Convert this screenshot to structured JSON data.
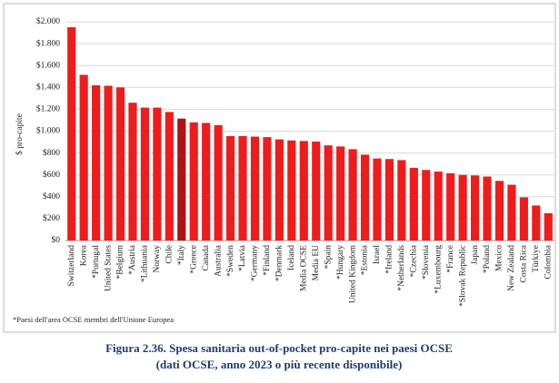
{
  "chart_data": {
    "type": "bar",
    "y_axis_label": "$ pro-capite",
    "categories": [
      "Switzerland",
      "Korea",
      "*Portugal",
      "United States",
      "*Belgium",
      "*Austria",
      "*Lithuania",
      "Norway",
      "Chile",
      "*Italy",
      "*Greece",
      "Canada",
      "Australia",
      "*Sweden",
      "*Latvia",
      "*Germany",
      "*Finland",
      "*Denmark",
      "Iceland",
      "Media OCSE",
      "Media EU",
      "*Spain",
      "*Hungary",
      "United Kingdom",
      "*Estonia",
      "Israel",
      "*Ireland",
      "*Netherlands",
      "*Czechia",
      "*Slovenia",
      "*Luxembourg",
      "*France",
      "*Slovak Republic",
      "Japan",
      "*Poland",
      "Mexico",
      "New Zealand",
      "Costa Rica",
      "Türkiye",
      "Colombia"
    ],
    "values": [
      1950,
      1515,
      1420,
      1415,
      1400,
      1260,
      1215,
      1215,
      1175,
      1115,
      1080,
      1075,
      1055,
      955,
      955,
      950,
      945,
      925,
      915,
      910,
      905,
      870,
      860,
      835,
      785,
      750,
      745,
      735,
      665,
      645,
      630,
      615,
      600,
      595,
      585,
      545,
      510,
      395,
      320,
      250
    ],
    "colors": [
      "#ee1c1c",
      "#ee1c1c",
      "#ee1c1c",
      "#ee1c1c",
      "#ee1c1c",
      "#ee1c1c",
      "#ee1c1c",
      "#ee1c1c",
      "#ee1c1c",
      "#b01116",
      "#ee1c1c",
      "#ee1c1c",
      "#ee1c1c",
      "#ee1c1c",
      "#ee1c1c",
      "#ee1c1c",
      "#ee1c1c",
      "#ee1c1c",
      "#ee1c1c",
      "#ee1c1c",
      "#ee1c1c",
      "#ee1c1c",
      "#ee1c1c",
      "#ee1c1c",
      "#ee1c1c",
      "#ee1c1c",
      "#ee1c1c",
      "#ee1c1c",
      "#ee1c1c",
      "#ee1c1c",
      "#ee1c1c",
      "#ee1c1c",
      "#ee1c1c",
      "#ee1c1c",
      "#ee1c1c",
      "#ee1c1c",
      "#ee1c1c",
      "#ee1c1c",
      "#ee1c1c",
      "#ee1c1c"
    ],
    "ylim": [
      0,
      2000
    ],
    "yticks": [
      {
        "value": 0,
        "label": "$0"
      },
      {
        "value": 200,
        "label": "$200"
      },
      {
        "value": 400,
        "label": "$400"
      },
      {
        "value": 600,
        "label": "$600"
      },
      {
        "value": 800,
        "label": "$800"
      },
      {
        "value": 1000,
        "label": "$1.000"
      },
      {
        "value": 1200,
        "label": "$1.200"
      },
      {
        "value": 1400,
        "label": "$1.400"
      },
      {
        "value": 1600,
        "label": "$1.600"
      },
      {
        "value": 1800,
        "label": "$1.800"
      },
      {
        "value": 2000,
        "label": "$2.000"
      }
    ],
    "grid": true,
    "footnote": "*Paesi dell'area OCSE membri dell'Unione Europea",
    "caption": [
      "Figura 2.36. Spesa sanitaria out-of-pocket pro-capite nei paesi OCSE",
      "(dati OCSE, anno 2023 o più recente disponibile)"
    ]
  }
}
